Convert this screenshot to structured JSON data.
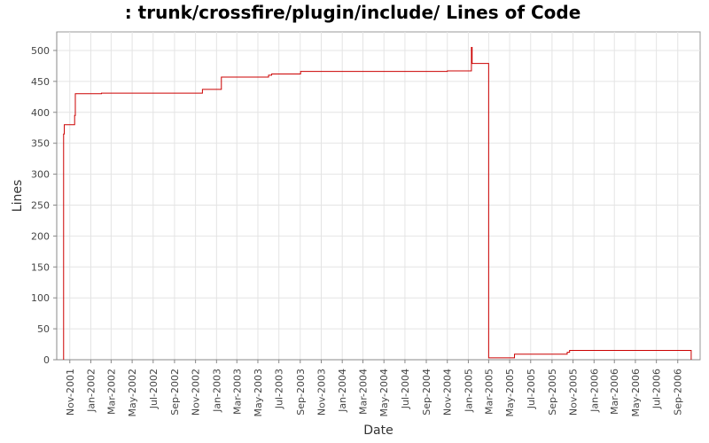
{
  "chart_data": {
    "type": "line",
    "title": ": trunk/crossfire/plugin/include/ Lines of Code",
    "xlabel": "Date",
    "ylabel": "Lines",
    "ylim": [
      0,
      530
    ],
    "xlim": [
      "2001-09-24",
      "2006-11-05"
    ],
    "y_ticks": [
      0,
      50,
      100,
      150,
      200,
      250,
      300,
      350,
      400,
      450,
      500
    ],
    "x_ticks": [
      {
        "date": "2001-11-01",
        "label": "Nov-2001"
      },
      {
        "date": "2002-01-01",
        "label": "Jan-2002"
      },
      {
        "date": "2002-03-01",
        "label": "Mar-2002"
      },
      {
        "date": "2002-05-01",
        "label": "May-2002"
      },
      {
        "date": "2002-07-01",
        "label": "Jul-2002"
      },
      {
        "date": "2002-09-01",
        "label": "Sep-2002"
      },
      {
        "date": "2002-11-01",
        "label": "Nov-2002"
      },
      {
        "date": "2003-01-01",
        "label": "Jan-2003"
      },
      {
        "date": "2003-03-01",
        "label": "Mar-2003"
      },
      {
        "date": "2003-05-01",
        "label": "May-2003"
      },
      {
        "date": "2003-07-01",
        "label": "Jul-2003"
      },
      {
        "date": "2003-09-01",
        "label": "Sep-2003"
      },
      {
        "date": "2003-11-01",
        "label": "Nov-2003"
      },
      {
        "date": "2004-01-01",
        "label": "Jan-2004"
      },
      {
        "date": "2004-03-01",
        "label": "Mar-2004"
      },
      {
        "date": "2004-05-01",
        "label": "May-2004"
      },
      {
        "date": "2004-07-01",
        "label": "Jul-2004"
      },
      {
        "date": "2004-09-01",
        "label": "Sep-2004"
      },
      {
        "date": "2004-11-01",
        "label": "Nov-2004"
      },
      {
        "date": "2005-01-01",
        "label": "Jan-2005"
      },
      {
        "date": "2005-03-01",
        "label": "Mar-2005"
      },
      {
        "date": "2005-05-01",
        "label": "May-2005"
      },
      {
        "date": "2005-07-01",
        "label": "Jul-2005"
      },
      {
        "date": "2005-09-01",
        "label": "Sep-2005"
      },
      {
        "date": "2005-11-01",
        "label": "Nov-2005"
      },
      {
        "date": "2006-01-01",
        "label": "Jan-2006"
      },
      {
        "date": "2006-03-01",
        "label": "Mar-2006"
      },
      {
        "date": "2006-05-01",
        "label": "May-2006"
      },
      {
        "date": "2006-07-01",
        "label": "Jul-2006"
      },
      {
        "date": "2006-09-01",
        "label": "Sep-2006"
      }
    ],
    "grid": true,
    "line_color": "#cc0000",
    "background": "#ffffff",
    "step": true,
    "series": [
      {
        "points": [
          {
            "x": "2001-10-14",
            "y": 0
          },
          {
            "x": "2001-10-14",
            "y": 365
          },
          {
            "x": "2001-10-16",
            "y": 380
          },
          {
            "x": "2001-11-15",
            "y": 395
          },
          {
            "x": "2001-11-17",
            "y": 430
          },
          {
            "x": "2002-02-01",
            "y": 431
          },
          {
            "x": "2002-11-21",
            "y": 437
          },
          {
            "x": "2003-01-15",
            "y": 457
          },
          {
            "x": "2003-06-01",
            "y": 460
          },
          {
            "x": "2003-06-10",
            "y": 462
          },
          {
            "x": "2003-09-02",
            "y": 466
          },
          {
            "x": "2004-11-01",
            "y": 467
          },
          {
            "x": "2005-01-10",
            "y": 505
          },
          {
            "x": "2005-01-12",
            "y": 479
          },
          {
            "x": "2005-03-01",
            "y": 3
          },
          {
            "x": "2005-05-15",
            "y": 9
          },
          {
            "x": "2005-10-15",
            "y": 12
          },
          {
            "x": "2005-10-22",
            "y": 15
          },
          {
            "x": "2006-10-10",
            "y": 15
          },
          {
            "x": "2006-10-10",
            "y": 0
          }
        ]
      }
    ]
  }
}
